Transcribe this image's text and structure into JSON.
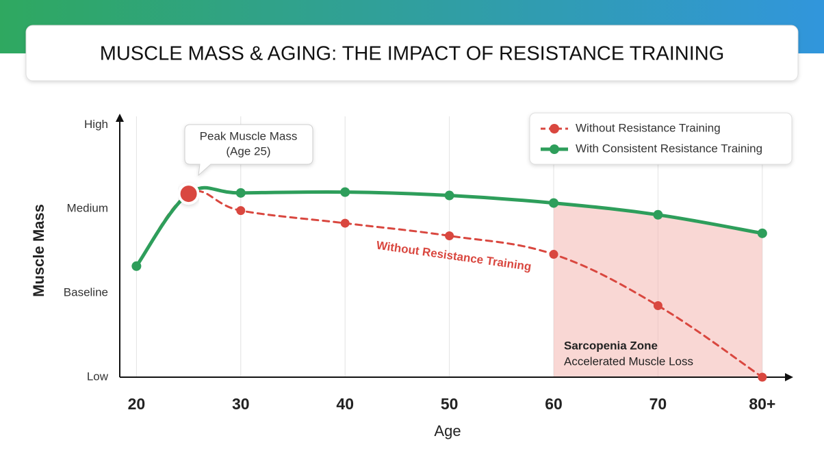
{
  "chart_data": {
    "type": "line",
    "title": "MUSCLE MASS & AGING: THE IMPACT OF RESISTANCE TRAINING",
    "x_label": "Age",
    "y_label": "Muscle Mass",
    "xlim": [
      18.4,
      82.7
    ],
    "ylim": [
      0,
      3.1
    ],
    "xticks": [
      20,
      30,
      40,
      50,
      60,
      70,
      {
        "value": 80,
        "label": "80+"
      }
    ],
    "yticks": [
      {
        "value": 0,
        "label": "Low"
      },
      {
        "value": 1,
        "label": "Baseline"
      },
      {
        "value": 2,
        "label": "Medium"
      },
      {
        "value": 3,
        "label": "High"
      }
    ],
    "grid": "x",
    "legend": "top-right",
    "series": [
      {
        "name": "Without Resistance Training",
        "color": "#d9473f",
        "dashed": true,
        "x": [
          20,
          25,
          30,
          40,
          50,
          60,
          70,
          80
        ],
        "values": [
          1.32,
          2.18,
          1.98,
          1.83,
          1.68,
          1.46,
          0.85,
          0
        ]
      },
      {
        "name": "With Consistent Resistance Training",
        "color": "#2e9e5b",
        "dashed": false,
        "x": [
          20,
          25,
          30,
          40,
          50,
          60,
          70,
          80
        ],
        "values": [
          1.32,
          2.18,
          2.19,
          2.2,
          2.16,
          2.07,
          1.93,
          1.71
        ]
      }
    ],
    "peak": {
      "x": 25,
      "value": 2.18,
      "lines": [
        "Peak Muscle Mass",
        "(Age 25)"
      ]
    },
    "line_label": "Without Resistance Training",
    "zone": {
      "from": 60,
      "to": 80,
      "title": "Sarcopenia Zone",
      "subtitle": "Accelerated Muscle Loss"
    }
  }
}
